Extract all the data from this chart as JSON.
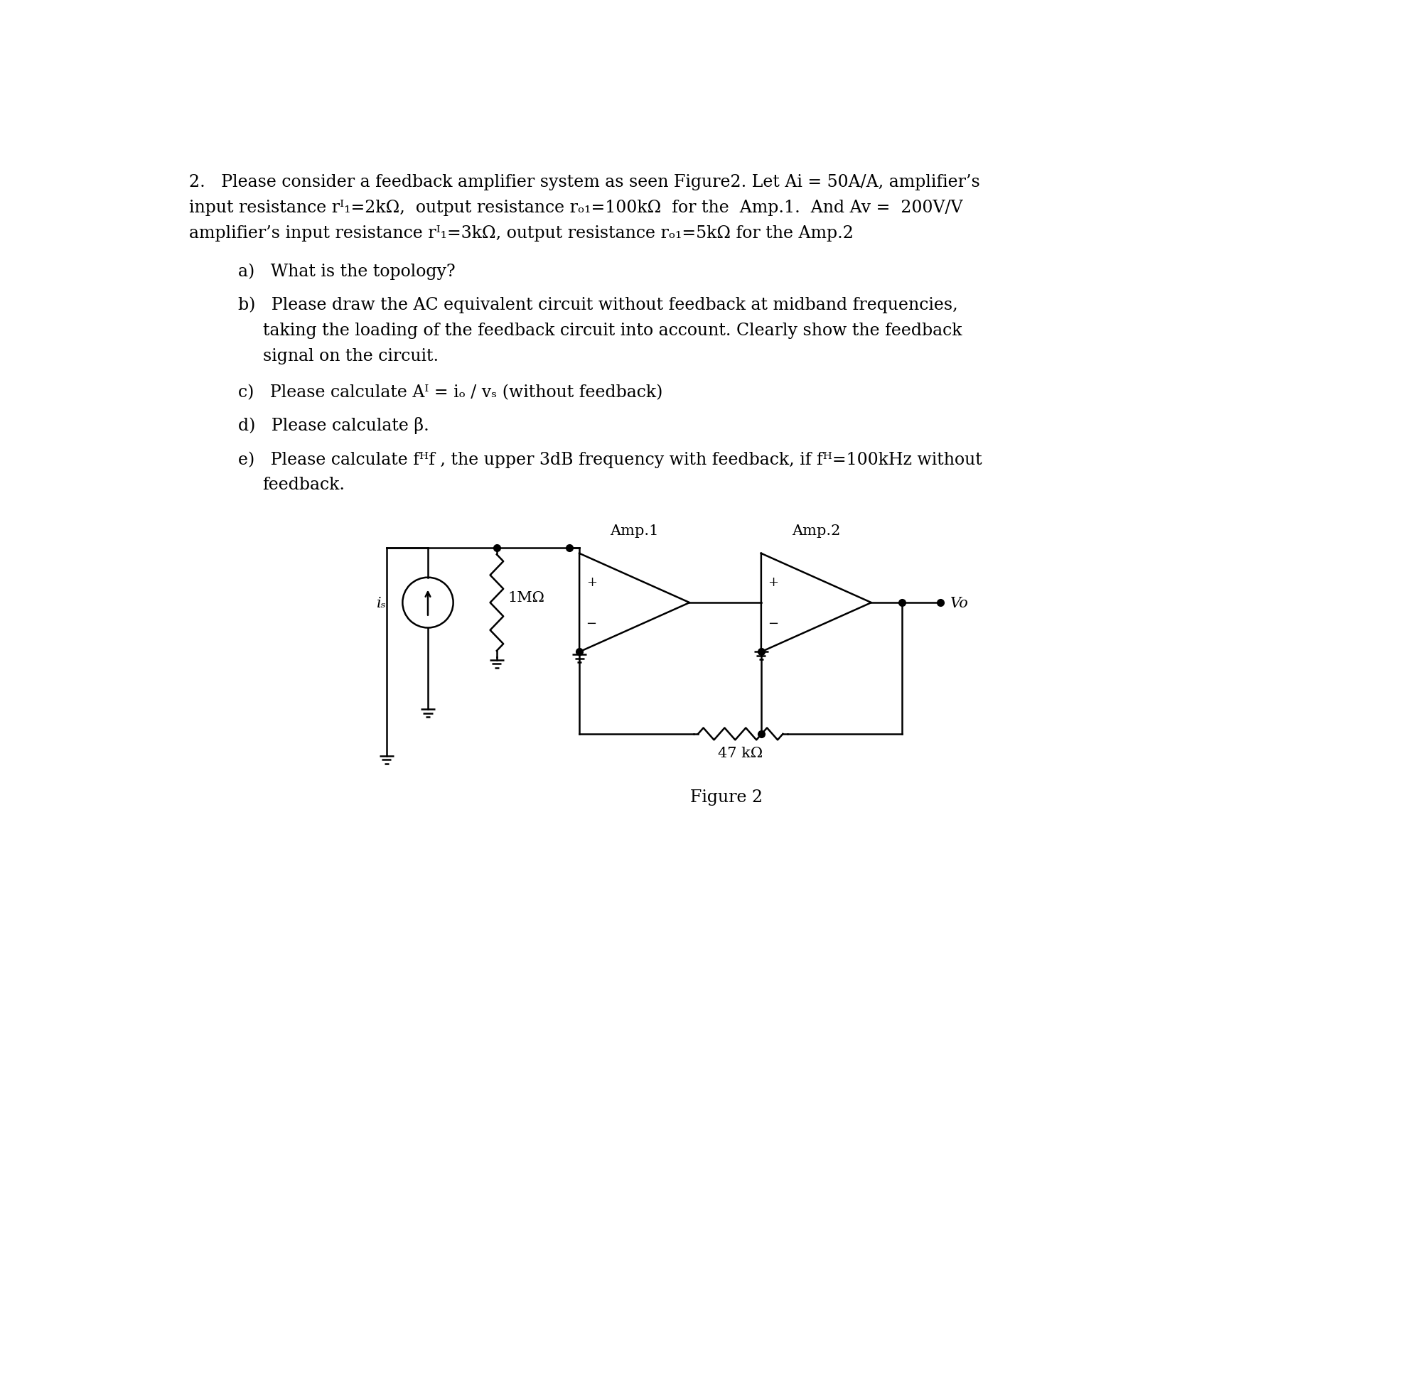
{
  "bg_color": "#ffffff",
  "text_color": "#000000",
  "font_size_main": 17,
  "font_size_circuit": 15,
  "lw": 1.8,
  "dot_size": 7,
  "ground_size": 0.13,
  "text": {
    "line1": "2.   Please consider a feedback amplifier system as seen Figure2. Let Ai = 50A/A, amplifier’s",
    "line2": "input resistance rᴵ₁=2kΩ,  output resistance rₒ₁=100kΩ  for the  Amp.1.  And Av =  200V/V",
    "line3": "amplifier’s input resistance rᴵ₁=3kΩ, output resistance rₒ₁=5kΩ for the Amp.2",
    "qa": "a)   What is the topology?",
    "qb1": "b)   Please draw the AC equivalent circuit without feedback at midband frequencies,",
    "qb2": "taking the loading of the feedback circuit into account. Clearly show the feedback",
    "qb3": "signal on the circuit.",
    "qc": "c)   Please calculate Aᴵ = iₒ / vₛ (without feedback)",
    "qd": "d)   Please calculate β.",
    "qe1": "e)   Please calculate fᴴf , the upper 3dB frequency with feedback, if fᴴ=100kHz without",
    "qe2": "feedback.",
    "fig": "Figure 2"
  }
}
